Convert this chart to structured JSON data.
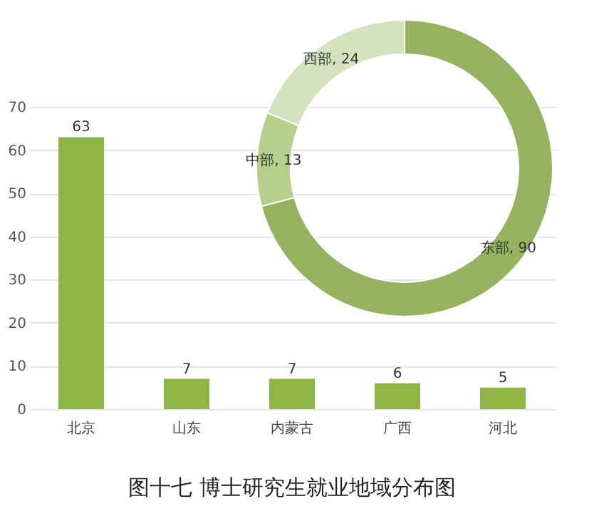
{
  "chart_data": [
    {
      "type": "bar",
      "title": "图十七  博士研究生就业地域分布图",
      "categories": [
        "北京",
        "山东",
        "内蒙古",
        "广西",
        "河北"
      ],
      "values": [
        63,
        7,
        7,
        6,
        5
      ],
      "color": "#8db645",
      "ylim": [
        0,
        70
      ],
      "yticks": [
        0,
        10,
        20,
        30,
        40,
        50,
        60,
        70
      ],
      "grid": "y",
      "data_labels": true
    },
    {
      "type": "donut",
      "categories": [
        "东部, 90",
        "中部, 13",
        "西部, 24"
      ],
      "values": [
        90,
        13,
        24
      ],
      "colors": [
        "#93b35e",
        "#b5d08a",
        "#d5e2c0"
      ]
    }
  ]
}
